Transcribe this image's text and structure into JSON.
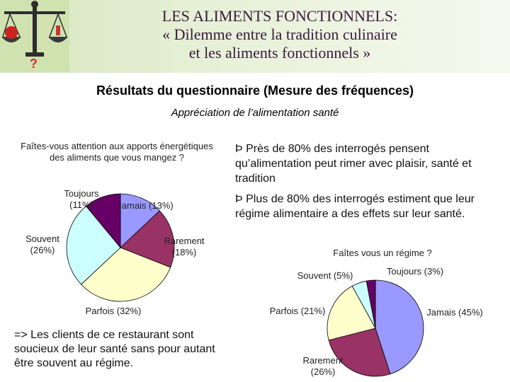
{
  "header": {
    "title_line1": "LES ALIMENTS FONCTIONNELS:",
    "title_line2": "« Dilemme entre la tradition culinaire",
    "title_line3": "et les aliments fonctionnels »"
  },
  "subtitle": "Résultats du questionnaire (Mesure des fréquences)",
  "subsubtitle": "Appréciation de l’alimentation santé",
  "bullets": [
    "Þ Près de 80% des interrogés pensent qu’alimentation peut rimer avec plaisir, santé et tradition",
    "Þ Plus de 80% des interrogés estiment que leur régime alimentaire a des effets sur leur santé."
  ],
  "conclusion": "=> Les clients de ce restaurant sont soucieux de leur santé sans pour autant être souvent au régime.",
  "colors": {
    "jamais": "#9999ff",
    "rarement": "#993366",
    "parfois": "#ffffcc",
    "souvent": "#ccffff",
    "toujours": "#660066"
  },
  "chart_data": [
    {
      "type": "pie",
      "title": "Faîtes-vous attention aux apports énergétiques des aliments que vous mangez ?",
      "slices": [
        {
          "label": "Jamais (13%)",
          "value": 13,
          "color": "#9999ff"
        },
        {
          "label": "Rarement (18%)",
          "value": 18,
          "color": "#993366"
        },
        {
          "label": "Parfois (32%)",
          "value": 32,
          "color": "#ffffcc"
        },
        {
          "label": "Souvent (26%)",
          "value": 26,
          "color": "#ccffff"
        },
        {
          "label": "Toujours (11%)",
          "value": 11,
          "color": "#660066"
        }
      ]
    },
    {
      "type": "pie",
      "title": "Faîtes vous un régime ?",
      "slices": [
        {
          "label": "Jamais (45%)",
          "value": 45,
          "color": "#9999ff"
        },
        {
          "label": "Rarement (26%)",
          "value": 26,
          "color": "#993366"
        },
        {
          "label": "Parfois (21%)",
          "value": 21,
          "color": "#ffffcc"
        },
        {
          "label": "Souvent (5%)",
          "value": 5,
          "color": "#ccffff"
        },
        {
          "label": "Toujours (3%)",
          "value": 3,
          "color": "#660066"
        }
      ]
    }
  ]
}
